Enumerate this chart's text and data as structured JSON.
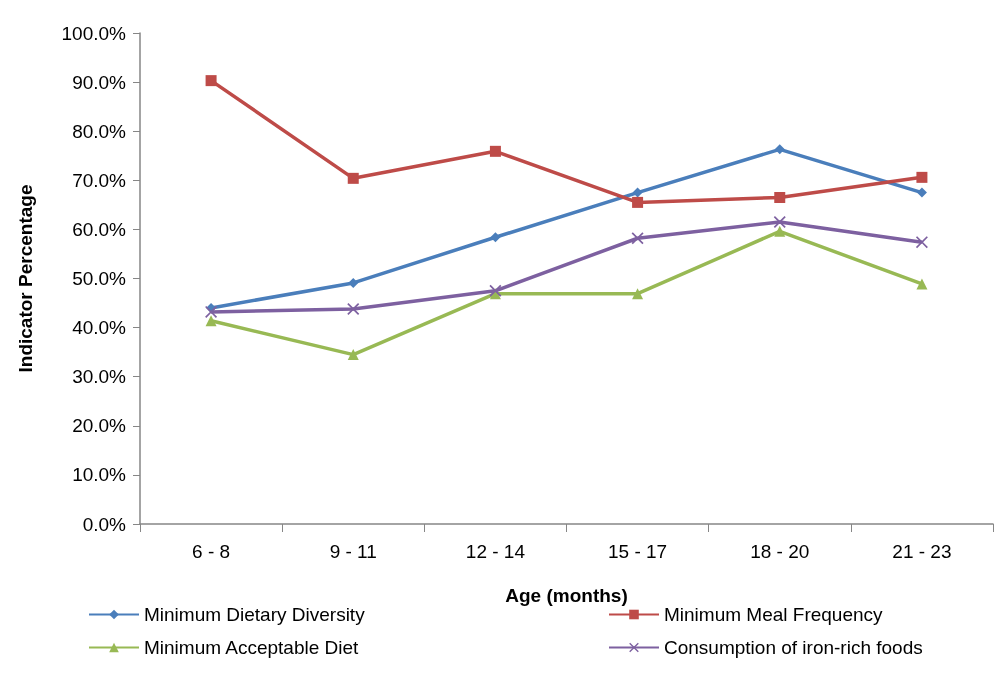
{
  "chart_data": {
    "type": "line",
    "xlabel": "Age (months)",
    "ylabel": "Indicator Percentage",
    "categories": [
      "6 - 8",
      "9 - 11",
      "12 - 14",
      "15 - 17",
      "18 - 20",
      "21 - 23"
    ],
    "series": [
      {
        "name": "Minimum Dietary Diversity",
        "color": "#4a7ebb",
        "marker": "diamond",
        "values": [
          44.0,
          49.1,
          58.4,
          67.5,
          76.3,
          67.5
        ]
      },
      {
        "name": "Minimum Meal Frequency",
        "color": "#be4b48",
        "marker": "square",
        "values": [
          90.3,
          70.4,
          75.9,
          65.5,
          66.5,
          70.6
        ]
      },
      {
        "name": "Minimum Acceptable Diet",
        "color": "#98b954",
        "marker": "triangle",
        "values": [
          41.4,
          34.5,
          46.9,
          46.9,
          59.6,
          48.9
        ]
      },
      {
        "name": "Consumption of iron-rich foods",
        "color": "#7d60a0",
        "marker": "cross",
        "values": [
          43.2,
          43.8,
          47.5,
          58.2,
          61.5,
          57.4
        ]
      }
    ],
    "ylim": [
      0,
      100
    ],
    "yticks": [
      {
        "value": 0,
        "label": "0.0%"
      },
      {
        "value": 10,
        "label": "10.0%"
      },
      {
        "value": 20,
        "label": "20.0%"
      },
      {
        "value": 30,
        "label": "30.0%"
      },
      {
        "value": 40,
        "label": "40.0%"
      },
      {
        "value": 50,
        "label": "50.0%"
      },
      {
        "value": 60,
        "label": "60.0%"
      },
      {
        "value": 70,
        "label": "70.0%"
      },
      {
        "value": 80,
        "label": "80.0%"
      },
      {
        "value": 90,
        "label": "90.0%"
      },
      {
        "value": 100,
        "label": "100.0%"
      }
    ],
    "grid": false,
    "legend": "bottom",
    "line_style": "solid"
  }
}
